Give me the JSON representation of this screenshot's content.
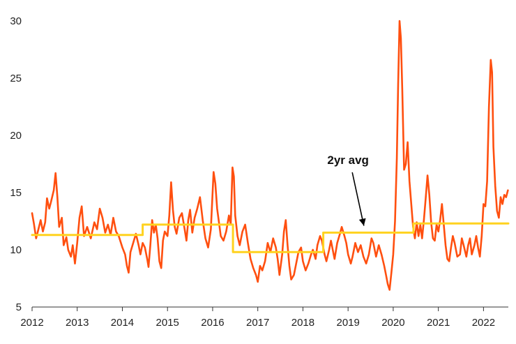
{
  "chart_data": {
    "type": "line",
    "title": "",
    "xlabel": "",
    "ylabel": "",
    "xlim": [
      2012.0,
      2022.55
    ],
    "ylim": [
      5,
      30
    ],
    "yticks": [
      5,
      10,
      15,
      20,
      25,
      30
    ],
    "xticks": [
      2012,
      2013,
      2014,
      2015,
      2016,
      2017,
      2018,
      2019,
      2020,
      2021,
      2022
    ],
    "grid": false,
    "legend": "none",
    "series": [
      {
        "color": "#ff4f0f",
        "points": [
          [
            2012.0,
            13.2
          ],
          [
            2012.04,
            12.3
          ],
          [
            2012.09,
            11.0
          ],
          [
            2012.14,
            11.8
          ],
          [
            2012.19,
            12.6
          ],
          [
            2012.24,
            11.6
          ],
          [
            2012.29,
            12.4
          ],
          [
            2012.33,
            14.5
          ],
          [
            2012.38,
            13.6
          ],
          [
            2012.42,
            14.2
          ],
          [
            2012.48,
            15.2
          ],
          [
            2012.52,
            16.7
          ],
          [
            2012.56,
            14.6
          ],
          [
            2012.6,
            12.0
          ],
          [
            2012.66,
            12.8
          ],
          [
            2012.7,
            10.4
          ],
          [
            2012.76,
            11.1
          ],
          [
            2012.8,
            10.0
          ],
          [
            2012.86,
            9.4
          ],
          [
            2012.9,
            10.4
          ],
          [
            2012.95,
            8.8
          ],
          [
            2013.0,
            10.6
          ],
          [
            2013.05,
            12.8
          ],
          [
            2013.1,
            13.8
          ],
          [
            2013.15,
            11.2
          ],
          [
            2013.22,
            12.0
          ],
          [
            2013.3,
            11.0
          ],
          [
            2013.38,
            12.4
          ],
          [
            2013.44,
            11.8
          ],
          [
            2013.5,
            13.6
          ],
          [
            2013.56,
            12.8
          ],
          [
            2013.62,
            11.5
          ],
          [
            2013.68,
            12.2
          ],
          [
            2013.74,
            11.3
          ],
          [
            2013.8,
            12.8
          ],
          [
            2013.86,
            11.6
          ],
          [
            2013.92,
            11.2
          ],
          [
            2014.0,
            10.2
          ],
          [
            2014.06,
            9.6
          ],
          [
            2014.1,
            8.6
          ],
          [
            2014.14,
            8.0
          ],
          [
            2014.18,
            9.8
          ],
          [
            2014.24,
            10.6
          ],
          [
            2014.3,
            11.4
          ],
          [
            2014.36,
            10.4
          ],
          [
            2014.4,
            9.6
          ],
          [
            2014.45,
            10.6
          ],
          [
            2014.5,
            10.2
          ],
          [
            2014.55,
            9.2
          ],
          [
            2014.58,
            8.5
          ],
          [
            2014.62,
            10.4
          ],
          [
            2014.66,
            12.6
          ],
          [
            2014.7,
            11.5
          ],
          [
            2014.74,
            12.2
          ],
          [
            2014.78,
            11.0
          ],
          [
            2014.82,
            9.0
          ],
          [
            2014.86,
            8.4
          ],
          [
            2014.9,
            10.8
          ],
          [
            2014.94,
            11.6
          ],
          [
            2015.0,
            11.2
          ],
          [
            2015.04,
            13.0
          ],
          [
            2015.08,
            15.9
          ],
          [
            2015.12,
            13.5
          ],
          [
            2015.16,
            12.0
          ],
          [
            2015.2,
            11.4
          ],
          [
            2015.26,
            12.8
          ],
          [
            2015.32,
            13.2
          ],
          [
            2015.38,
            11.8
          ],
          [
            2015.42,
            10.8
          ],
          [
            2015.46,
            12.6
          ],
          [
            2015.5,
            13.5
          ],
          [
            2015.55,
            11.5
          ],
          [
            2015.6,
            12.8
          ],
          [
            2015.66,
            13.6
          ],
          [
            2015.72,
            14.6
          ],
          [
            2015.78,
            12.6
          ],
          [
            2015.84,
            11.0
          ],
          [
            2015.9,
            10.2
          ],
          [
            2015.96,
            11.8
          ],
          [
            2016.02,
            16.8
          ],
          [
            2016.06,
            15.8
          ],
          [
            2016.1,
            13.6
          ],
          [
            2016.14,
            12.4
          ],
          [
            2016.18,
            11.2
          ],
          [
            2016.24,
            10.8
          ],
          [
            2016.3,
            11.6
          ],
          [
            2016.36,
            13.0
          ],
          [
            2016.4,
            12.2
          ],
          [
            2016.44,
            17.2
          ],
          [
            2016.47,
            16.4
          ],
          [
            2016.5,
            13.0
          ],
          [
            2016.55,
            11.2
          ],
          [
            2016.6,
            10.4
          ],
          [
            2016.66,
            11.6
          ],
          [
            2016.72,
            12.2
          ],
          [
            2016.78,
            10.6
          ],
          [
            2016.84,
            9.2
          ],
          [
            2016.9,
            8.4
          ],
          [
            2016.96,
            7.8
          ],
          [
            2017.0,
            7.2
          ],
          [
            2017.05,
            8.6
          ],
          [
            2017.1,
            8.2
          ],
          [
            2017.16,
            9.0
          ],
          [
            2017.22,
            10.6
          ],
          [
            2017.28,
            9.8
          ],
          [
            2017.34,
            11.0
          ],
          [
            2017.4,
            10.2
          ],
          [
            2017.44,
            9.2
          ],
          [
            2017.48,
            7.8
          ],
          [
            2017.54,
            9.6
          ],
          [
            2017.58,
            11.6
          ],
          [
            2017.62,
            12.6
          ],
          [
            2017.66,
            10.4
          ],
          [
            2017.7,
            8.6
          ],
          [
            2017.74,
            7.4
          ],
          [
            2017.8,
            7.8
          ],
          [
            2017.84,
            8.6
          ],
          [
            2017.9,
            9.8
          ],
          [
            2017.96,
            10.2
          ],
          [
            2018.0,
            9.0
          ],
          [
            2018.06,
            8.2
          ],
          [
            2018.12,
            8.8
          ],
          [
            2018.18,
            9.6
          ],
          [
            2018.22,
            10.0
          ],
          [
            2018.28,
            9.2
          ],
          [
            2018.32,
            10.4
          ],
          [
            2018.38,
            11.2
          ],
          [
            2018.42,
            10.8
          ],
          [
            2018.48,
            9.6
          ],
          [
            2018.52,
            9.0
          ],
          [
            2018.58,
            10.0
          ],
          [
            2018.62,
            10.8
          ],
          [
            2018.66,
            10.0
          ],
          [
            2018.7,
            9.2
          ],
          [
            2018.76,
            10.6
          ],
          [
            2018.82,
            11.4
          ],
          [
            2018.86,
            12.0
          ],
          [
            2018.92,
            11.2
          ],
          [
            2018.96,
            10.6
          ],
          [
            2019.0,
            9.6
          ],
          [
            2019.06,
            8.8
          ],
          [
            2019.1,
            9.4
          ],
          [
            2019.16,
            10.6
          ],
          [
            2019.22,
            9.8
          ],
          [
            2019.28,
            10.4
          ],
          [
            2019.34,
            9.4
          ],
          [
            2019.4,
            8.8
          ],
          [
            2019.46,
            9.6
          ],
          [
            2019.52,
            11.0
          ],
          [
            2019.56,
            10.6
          ],
          [
            2019.62,
            9.4
          ],
          [
            2019.68,
            10.4
          ],
          [
            2019.74,
            9.6
          ],
          [
            2019.8,
            8.6
          ],
          [
            2019.84,
            7.8
          ],
          [
            2019.88,
            7.0
          ],
          [
            2019.92,
            6.5
          ],
          [
            2019.96,
            8.0
          ],
          [
            2020.0,
            9.6
          ],
          [
            2020.04,
            12.5
          ],
          [
            2020.08,
            18.0
          ],
          [
            2020.11,
            24.5
          ],
          [
            2020.14,
            30.0
          ],
          [
            2020.17,
            28.5
          ],
          [
            2020.2,
            24.0
          ],
          [
            2020.24,
            17.0
          ],
          [
            2020.28,
            17.5
          ],
          [
            2020.32,
            19.4
          ],
          [
            2020.36,
            16.0
          ],
          [
            2020.4,
            14.0
          ],
          [
            2020.44,
            12.0
          ],
          [
            2020.48,
            11.0
          ],
          [
            2020.52,
            12.4
          ],
          [
            2020.56,
            11.2
          ],
          [
            2020.6,
            12.2
          ],
          [
            2020.64,
            11.0
          ],
          [
            2020.68,
            12.6
          ],
          [
            2020.72,
            14.5
          ],
          [
            2020.76,
            16.5
          ],
          [
            2020.8,
            14.8
          ],
          [
            2020.84,
            12.4
          ],
          [
            2020.88,
            11.0
          ],
          [
            2020.92,
            10.8
          ],
          [
            2020.96,
            12.2
          ],
          [
            2021.0,
            11.6
          ],
          [
            2021.04,
            12.6
          ],
          [
            2021.08,
            14.0
          ],
          [
            2021.12,
            12.2
          ],
          [
            2021.16,
            10.4
          ],
          [
            2021.2,
            9.2
          ],
          [
            2021.24,
            9.0
          ],
          [
            2021.28,
            10.2
          ],
          [
            2021.32,
            11.2
          ],
          [
            2021.36,
            10.6
          ],
          [
            2021.42,
            9.4
          ],
          [
            2021.48,
            9.6
          ],
          [
            2021.52,
            11.0
          ],
          [
            2021.56,
            10.4
          ],
          [
            2021.62,
            9.4
          ],
          [
            2021.66,
            10.4
          ],
          [
            2021.7,
            11.0
          ],
          [
            2021.74,
            9.6
          ],
          [
            2021.8,
            10.4
          ],
          [
            2021.84,
            11.2
          ],
          [
            2021.88,
            10.2
          ],
          [
            2021.92,
            9.4
          ],
          [
            2021.96,
            11.2
          ],
          [
            2022.0,
            14.0
          ],
          [
            2022.04,
            13.8
          ],
          [
            2022.08,
            16.0
          ],
          [
            2022.12,
            22.5
          ],
          [
            2022.16,
            26.6
          ],
          [
            2022.19,
            25.5
          ],
          [
            2022.22,
            19.0
          ],
          [
            2022.26,
            15.6
          ],
          [
            2022.3,
            13.4
          ],
          [
            2022.34,
            12.8
          ],
          [
            2022.38,
            14.6
          ],
          [
            2022.42,
            14.0
          ],
          [
            2022.46,
            14.8
          ],
          [
            2022.5,
            14.6
          ],
          [
            2022.54,
            15.2
          ]
        ]
      },
      {
        "name": "2yr avg",
        "color": "#ffd21f",
        "step": true,
        "points": [
          [
            2012.0,
            11.3
          ],
          [
            2014.45,
            11.3
          ],
          [
            2014.45,
            12.2
          ],
          [
            2016.45,
            12.2
          ],
          [
            2016.45,
            9.8
          ],
          [
            2018.45,
            9.8
          ],
          [
            2018.45,
            11.5
          ],
          [
            2020.45,
            11.5
          ],
          [
            2020.45,
            12.3
          ],
          [
            2022.55,
            12.3
          ]
        ]
      }
    ],
    "annotations": [
      {
        "text": "2yr avg",
        "x": 2019.0,
        "y": 17.5,
        "arrow_to": [
          2019.35,
          12.1
        ]
      }
    ]
  }
}
